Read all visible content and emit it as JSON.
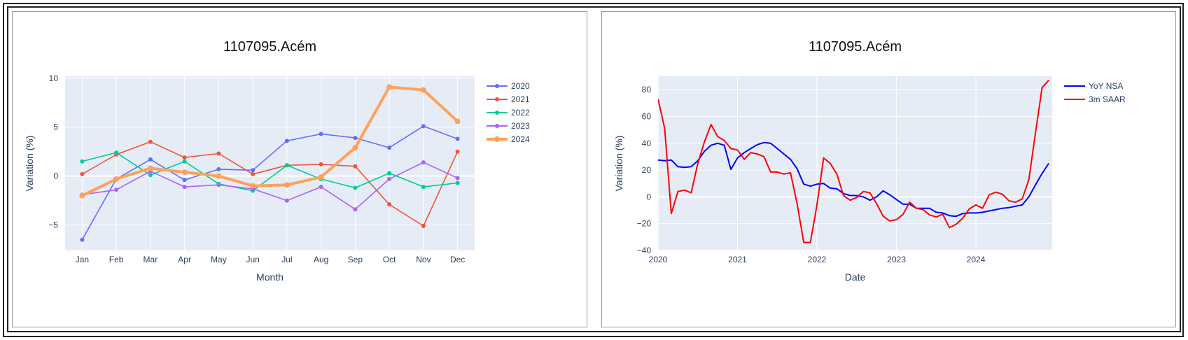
{
  "colors": {
    "plot_bg": "#e5ecf6",
    "grid": "#ffffff",
    "axis_text": "#2a3f5f"
  },
  "chart_data": [
    {
      "type": "line",
      "title": "1107095.Acém",
      "xlabel": "Month",
      "ylabel": "Variation (%)",
      "categories": [
        "Jan",
        "Feb",
        "Mar",
        "Apr",
        "May",
        "Jun",
        "Jul",
        "Aug",
        "Sep",
        "Oct",
        "Nov",
        "Dec"
      ],
      "yticks": [
        10,
        5,
        0,
        -5
      ],
      "ytick_labels": [
        "10",
        "5",
        "0",
        "−5"
      ],
      "ylim": [
        -7.6,
        10.2
      ],
      "grid": true,
      "legend_position": "top-right",
      "series": [
        {
          "name": "2020",
          "color": "#636efa",
          "values": [
            -6.5,
            -0.3,
            1.7,
            -0.4,
            0.7,
            0.6,
            3.6,
            4.3,
            3.9,
            2.9,
            5.1,
            3.8
          ]
        },
        {
          "name": "2021",
          "color": "#ef553b",
          "values": [
            0.2,
            2.2,
            3.5,
            1.9,
            2.3,
            0.2,
            1.1,
            1.2,
            1.0,
            -2.9,
            -5.1,
            2.5
          ]
        },
        {
          "name": "2022",
          "color": "#00cc96",
          "values": [
            1.5,
            2.4,
            0.1,
            1.5,
            -0.8,
            -1.5,
            1.1,
            -0.3,
            -1.2,
            0.3,
            -1.1,
            -0.7
          ]
        },
        {
          "name": "2023",
          "color": "#ab63fa",
          "values": [
            -1.9,
            -1.4,
            0.5,
            -1.1,
            -0.9,
            -1.3,
            -2.5,
            -1.1,
            -3.4,
            -0.3,
            1.4,
            -0.2
          ]
        },
        {
          "name": "2024",
          "color": "#ffa15a",
          "values": [
            -2.0,
            -0.3,
            0.8,
            0.4,
            0.0,
            -1.0,
            -0.9,
            -0.1,
            2.9,
            9.1,
            8.8,
            5.6
          ],
          "highlight": true
        }
      ]
    },
    {
      "type": "line",
      "title": "1107095.Acém",
      "xlabel": "Date",
      "ylabel": "Variation (%)",
      "xticks": [
        2020,
        2021,
        2022,
        2023,
        2024
      ],
      "xlim": [
        2020.0,
        2024.96
      ],
      "yticks": [
        80,
        60,
        40,
        20,
        0,
        -20,
        -40
      ],
      "ytick_labels": [
        "80",
        "60",
        "40",
        "20",
        "0",
        "−20",
        "−40"
      ],
      "ylim": [
        -40,
        90
      ],
      "grid": true,
      "legend_position": "top-right",
      "series": [
        {
          "name": "YoY NSA",
          "color": "#0000ff",
          "values": [
            27.5,
            27,
            27.5,
            22.5,
            22,
            22.5,
            27,
            34,
            38.5,
            40,
            38.5,
            20.5,
            29,
            33,
            36,
            39,
            40.5,
            40,
            36,
            32,
            28,
            21,
            9.5,
            8,
            9.5,
            10,
            6.5,
            6,
            2.5,
            1,
            1,
            0,
            -2.5,
            0,
            4.5,
            1.5,
            -2,
            -5.5,
            -5.5,
            -8.5,
            -8.5,
            -8.5,
            -11.5,
            -12,
            -14,
            -14.5,
            -12.5,
            -12,
            -12,
            -11.5,
            -10.5,
            -9.5,
            -8.5,
            -8,
            -7,
            -6,
            0,
            9,
            17.5,
            25
          ]
        },
        {
          "name": "3m SAAR",
          "color": "#ff0000",
          "values": [
            73,
            51,
            -12.5,
            4,
            5,
            3,
            25,
            41,
            54,
            45,
            42,
            36,
            35,
            28,
            33,
            32,
            30,
            18.5,
            18.5,
            17,
            18,
            -5,
            -34,
            -34,
            -6,
            29,
            25,
            17,
            1,
            -2.5,
            -0.5,
            4,
            3,
            -5,
            -14.5,
            -18,
            -17,
            -13,
            -4,
            -8.5,
            -9.5,
            -13.5,
            -15,
            -13,
            -23,
            -20.5,
            -16,
            -9,
            -6,
            -8.5,
            1.5,
            3.5,
            2,
            -3,
            -4,
            -1.5,
            13,
            48,
            81.5,
            87
          ]
        }
      ]
    }
  ]
}
